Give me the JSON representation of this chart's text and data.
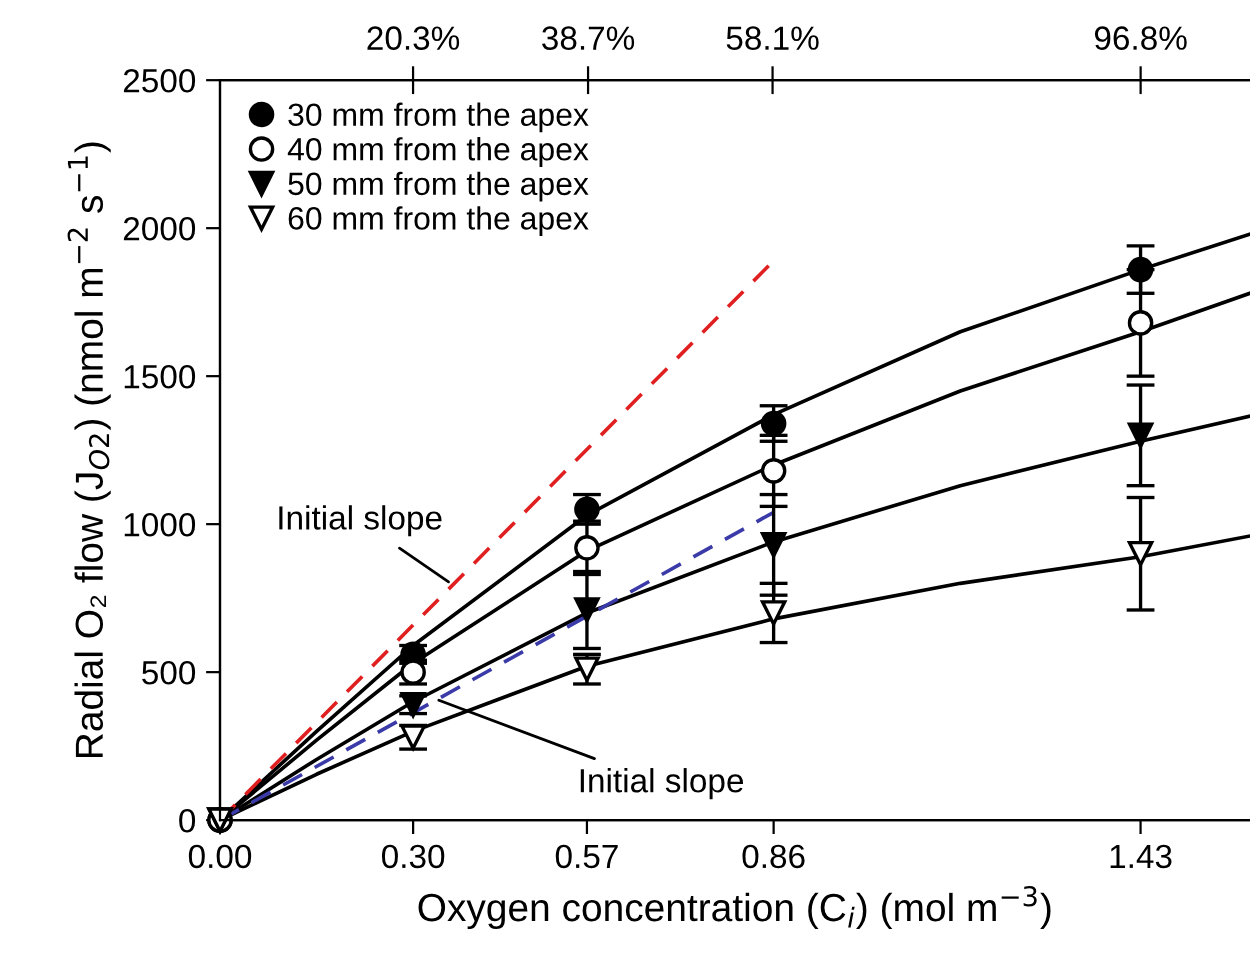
{
  "chart_data": {
    "type": "scatter",
    "xlabel": "Oxygen concentration (C$_{i}$) (mol m$^{−3}$)",
    "ylabel": "Radial O₂ flow (J$_{O2}$) (nmol m$^{−2}$ s$^{−1}$)",
    "xlim": [
      0,
      1.6
    ],
    "ylim": [
      0,
      2500
    ],
    "xticks": [
      {
        "value": 0,
        "label": "0.00"
      },
      {
        "value": 0.3,
        "label": "0.30"
      },
      {
        "value": 0.57,
        "label": "0.57"
      },
      {
        "value": 0.86,
        "label": "0.86"
      },
      {
        "value": 1.43,
        "label": "1.43"
      }
    ],
    "x2lim": [
      0,
      108.3
    ],
    "x2ticks": [
      {
        "value": 20.3,
        "label": "20.3%"
      },
      {
        "value": 38.7,
        "label": "38.7%"
      },
      {
        "value": 58.1,
        "label": "58.1%"
      },
      {
        "value": 96.8,
        "label": "96.8%"
      }
    ],
    "yticks": [
      0,
      500,
      1000,
      1500,
      2000,
      2500
    ],
    "legend": "top left",
    "grid": false,
    "series": [
      {
        "name": "30 mm from the apex",
        "marker": "circle",
        "color": "#000000",
        "x": [
          0,
          0.3,
          0.57,
          0.86,
          1.43
        ],
        "values": [
          0,
          560,
          1050,
          1340,
          1860
        ],
        "errors": [
          null,
          30,
          50,
          60,
          80
        ]
      },
      {
        "name": "40 mm from the apex",
        "marker": "circle",
        "color": "#ffffff",
        "x": [
          0,
          0.3,
          0.57,
          0.86,
          1.43
        ],
        "values": [
          0,
          500,
          920,
          1180,
          1680
        ],
        "errors": [
          null,
          40,
          90,
          120,
          180
        ]
      },
      {
        "name": "50 mm from the apex",
        "marker": "triangle",
        "color": "#000000",
        "x": [
          0,
          0.3,
          0.57,
          0.86,
          1.43
        ],
        "values": [
          0,
          390,
          710,
          930,
          1300
        ],
        "errors": [
          null,
          30,
          130,
          170,
          170
        ]
      },
      {
        "name": "60 mm from the apex",
        "marker": "triangle",
        "color": "#ffffff",
        "x": [
          0,
          0.3,
          0.57,
          0.86,
          1.43
        ],
        "values": [
          0,
          280,
          510,
          700,
          900
        ],
        "errors": [
          null,
          40,
          50,
          100,
          190
        ]
      },
      {
        "type": "line",
        "color": "#000000",
        "line_style": "solid",
        "x": [
          0,
          0.15,
          0.3,
          0.57,
          0.86,
          1.15,
          1.43,
          1.6
        ],
        "values": [
          0,
          300,
          590,
          1030,
          1370,
          1650,
          1860,
          1980
        ]
      },
      {
        "type": "line",
        "color": "#000000",
        "line_style": "solid",
        "x": [
          0,
          0.15,
          0.3,
          0.57,
          0.86,
          1.15,
          1.43,
          1.6
        ],
        "values": [
          0,
          270,
          530,
          910,
          1200,
          1450,
          1650,
          1780
        ]
      },
      {
        "type": "line",
        "color": "#000000",
        "line_style": "solid",
        "x": [
          0,
          0.15,
          0.3,
          0.57,
          0.86,
          1.15,
          1.43,
          1.6
        ],
        "values": [
          0,
          205,
          400,
          700,
          940,
          1130,
          1280,
          1365
        ]
      },
      {
        "type": "line",
        "color": "#000000",
        "line_style": "solid",
        "x": [
          0,
          0.15,
          0.3,
          0.57,
          0.86,
          1.15,
          1.43,
          1.6
        ],
        "values": [
          0,
          155,
          300,
          520,
          680,
          800,
          890,
          960
        ]
      },
      {
        "type": "line",
        "color": "#e02020",
        "line_style": "dashed",
        "x": [
          0,
          0.86
        ],
        "values": [
          0,
          1890
        ]
      },
      {
        "type": "line",
        "color": "#3a3aa8",
        "line_style": "dashed",
        "x": [
          0,
          0.86
        ],
        "values": [
          0,
          1040
        ]
      }
    ],
    "annotations": [
      {
        "text": "Initial slope",
        "x": 0.355,
        "y": 805
      },
      {
        "text": "Initial slope",
        "x": 0.34,
        "y": 405
      }
    ]
  }
}
